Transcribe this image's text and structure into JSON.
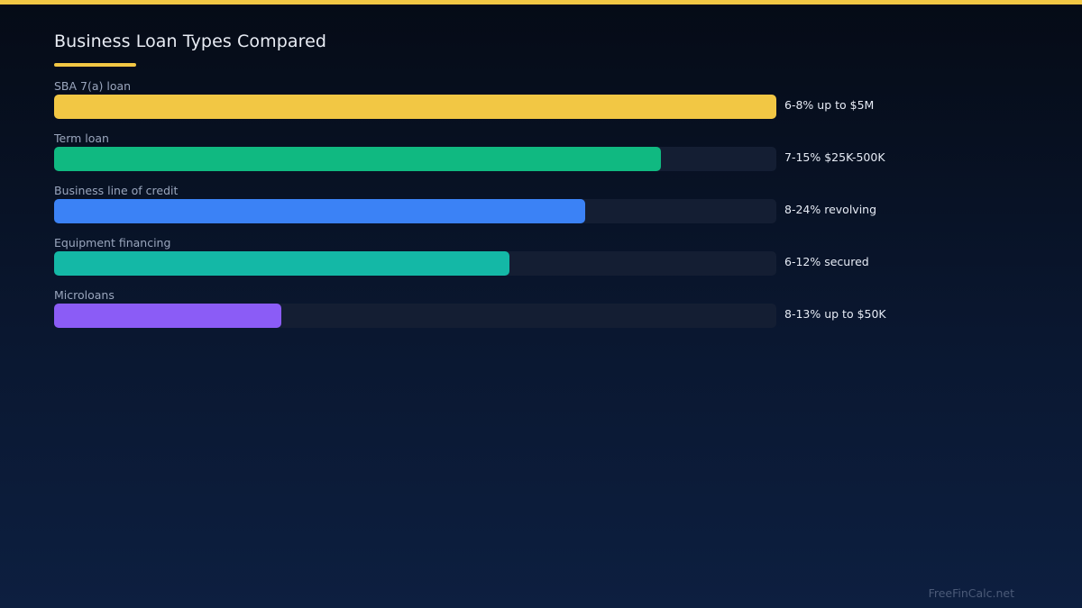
{
  "accent_color": "#f2c744",
  "chart_data": {
    "type": "bar",
    "orientation": "horizontal",
    "title": "Business Loan Types Compared",
    "xlim": [
      0,
      100
    ],
    "categories": [
      "SBA 7(a) loan",
      "Term loan",
      "Business line of credit",
      "Equipment financing",
      "Microloans"
    ],
    "values": [
      100,
      84,
      73.5,
      63,
      31.5
    ],
    "annotations": [
      "6-8% up to $5M",
      "7-15% $25K-500K",
      "8-24% revolving",
      "6-12% secured",
      "8-13% up to $50K"
    ],
    "colors": [
      "#f2c744",
      "#10b981",
      "#3b82f6",
      "#14b8a6",
      "#8b5cf6"
    ],
    "grid": false,
    "legend": "none"
  },
  "watermark": "FreeFinCalc.net"
}
